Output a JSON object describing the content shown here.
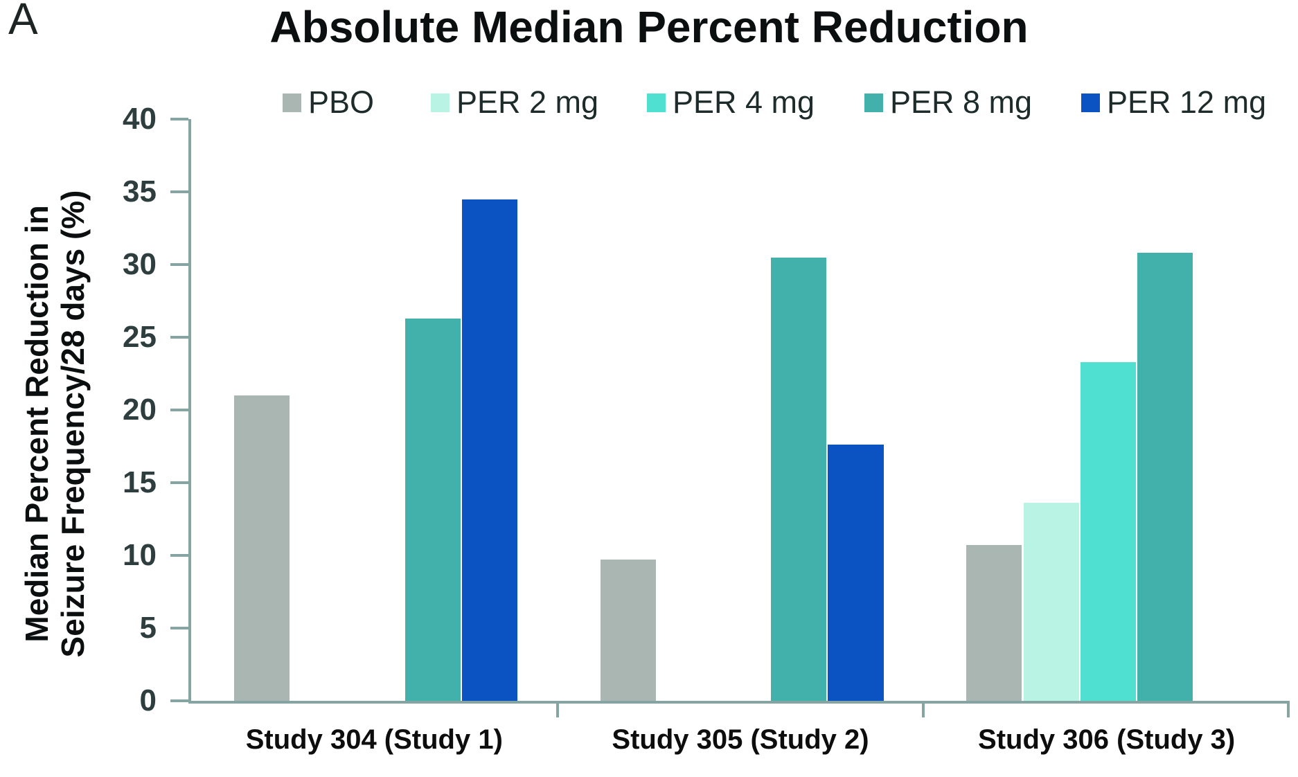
{
  "panel_label": "A",
  "chart_data": {
    "type": "bar",
    "title": "Absolute Median Percent Reduction",
    "ylabel_line1": "Median Percent Reduction in",
    "ylabel_line2": "Seizure Frequency/28 days (%)",
    "xlabel": "",
    "ylim": [
      0,
      40
    ],
    "yticks": [
      0,
      5,
      10,
      15,
      20,
      25,
      30,
      35,
      40
    ],
    "grid": false,
    "legend_position": "top",
    "axis_color": "#86a5a2",
    "background_color": "#ffffff",
    "categories": [
      "Study 304 (Study 1)",
      "Study 305 (Study 2)",
      "Study 306 (Study 3)"
    ],
    "series": [
      {
        "name": "PBO",
        "color": "#a9b6b2",
        "values": [
          21.0,
          9.7,
          10.7
        ]
      },
      {
        "name": "PER 2 mg",
        "color": "#b9f3e3",
        "values": [
          null,
          null,
          13.6
        ]
      },
      {
        "name": "PER 4 mg",
        "color": "#50e0d2",
        "values": [
          null,
          null,
          23.3
        ]
      },
      {
        "name": "PER 8 mg",
        "color": "#43b1ab",
        "values": [
          26.3,
          30.5,
          30.8
        ]
      },
      {
        "name": "PER 12 mg",
        "color": "#0b53c2",
        "values": [
          34.5,
          17.6,
          null
        ]
      }
    ]
  }
}
